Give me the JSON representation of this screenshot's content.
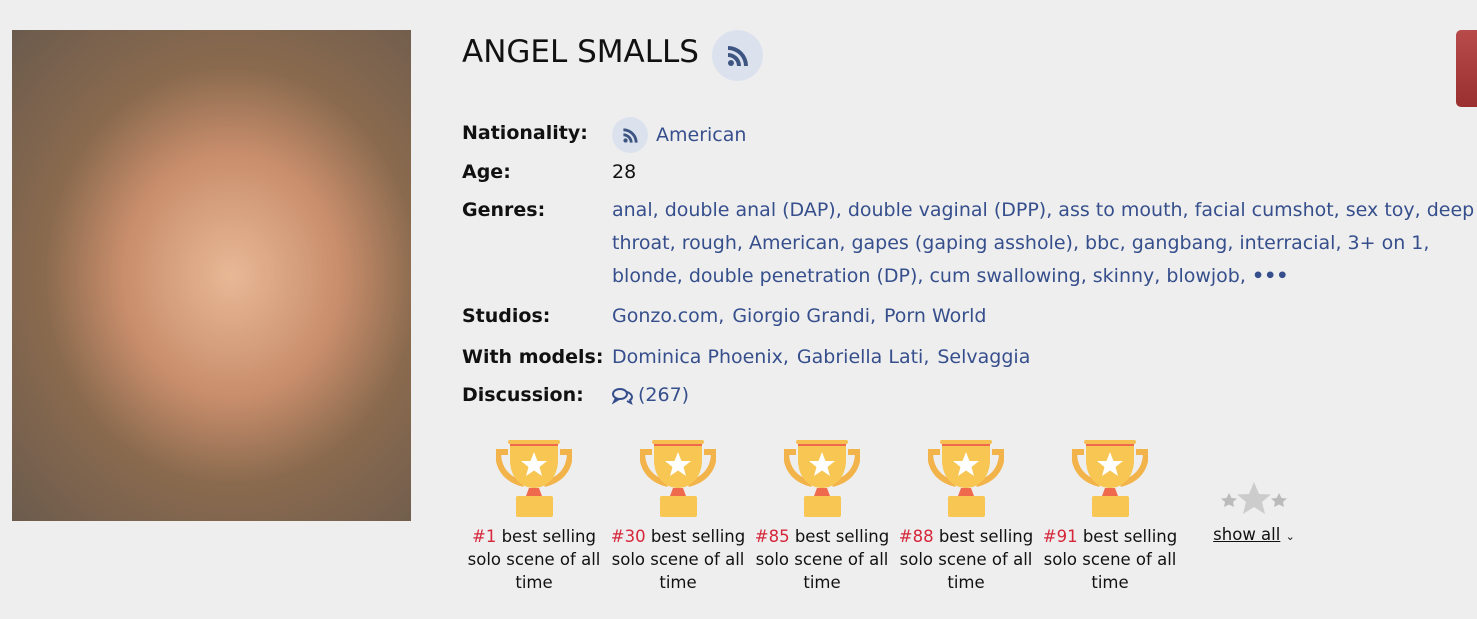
{
  "profile": {
    "name": "ANGEL SMALLS",
    "photo_alt": "model photo",
    "fields": {
      "nationality_label": "Nationality:",
      "nationality": "American",
      "age_label": "Age:",
      "age": "28",
      "genres_label": "Genres:",
      "genres": [
        "anal,",
        "double anal (DAP),",
        "double vaginal (DPP),",
        "ass to mouth,",
        "facial cumshot,",
        "sex toy,",
        "deep throat,",
        "rough,",
        "American,",
        "gapes (gaping asshole),",
        "bbc,",
        "gangbang,",
        "interracial,",
        "3+ on 1,",
        "blonde,",
        "double penetration (DP),",
        "cum swallowing,",
        "skinny,",
        "blowjob,"
      ],
      "genres_more": "•••",
      "studios_label": "Studios:",
      "studios": [
        "Gonzo.com,",
        "Giorgio Grandi,",
        "Porn World"
      ],
      "models_label": "With models:",
      "models": [
        "Dominica Phoenix,",
        "Gabriella Lati,",
        "Selvaggia"
      ],
      "discussion_label": "Discussion:",
      "discussion_count": "(267)"
    }
  },
  "awards": [
    {
      "rank": "#1",
      "text": " best selling solo scene of all time"
    },
    {
      "rank": "#30",
      "text": " best selling solo scene of all time"
    },
    {
      "rank": "#85",
      "text": " best selling solo scene of all time"
    },
    {
      "rank": "#88",
      "text": " best selling solo scene of all time"
    },
    {
      "rank": "#91",
      "text": " best selling solo scene of all time"
    }
  ],
  "show_all": "show all",
  "colors": {
    "link": "#364f8c",
    "rank": "#d6263a",
    "background": "#eeeeee",
    "trophy": "#f6bf4f"
  }
}
